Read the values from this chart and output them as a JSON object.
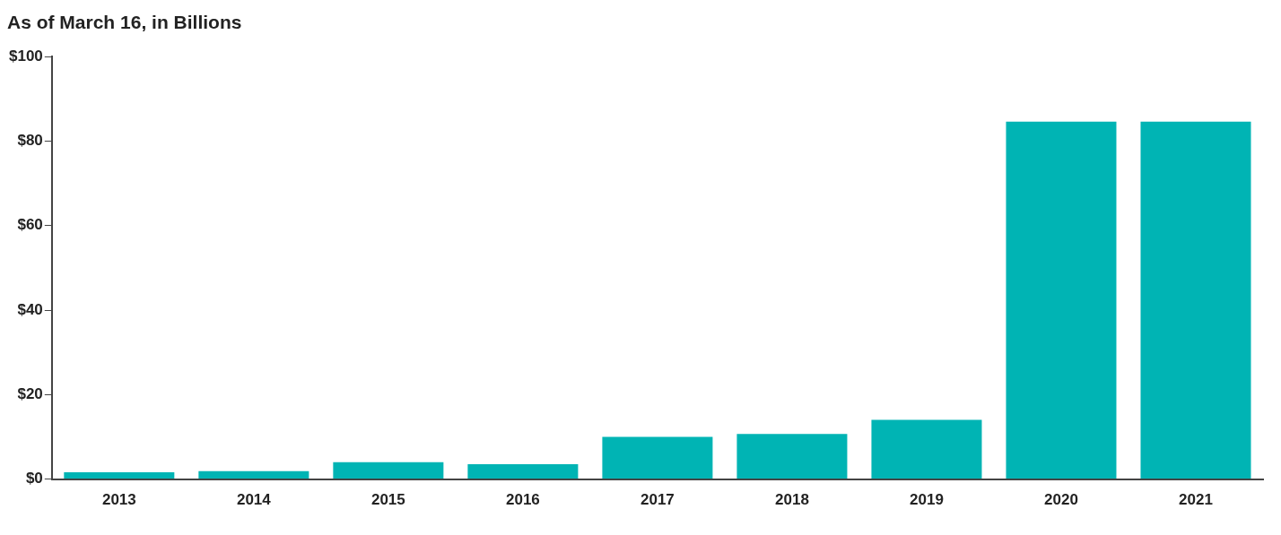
{
  "chart_data": {
    "type": "bar",
    "subtitle": "As of March 16, in Billions",
    "categories": [
      "2013",
      "2014",
      "2015",
      "2016",
      "2017",
      "2018",
      "2019",
      "2020",
      "2021"
    ],
    "values": [
      1.6,
      1.9,
      4,
      3.5,
      10,
      10.7,
      14,
      84.6,
      84.6
    ],
    "color": "#00b4b4",
    "ylim": [
      0,
      100
    ],
    "yticks": [
      {
        "value": 0,
        "label": "$0"
      },
      {
        "value": 20,
        "label": "$20"
      },
      {
        "value": 40,
        "label": "$40"
      },
      {
        "value": 60,
        "label": "$60"
      },
      {
        "value": 80,
        "label": "$80"
      },
      {
        "value": 100,
        "label": "$100"
      }
    ],
    "grid": false,
    "legend": false
  }
}
